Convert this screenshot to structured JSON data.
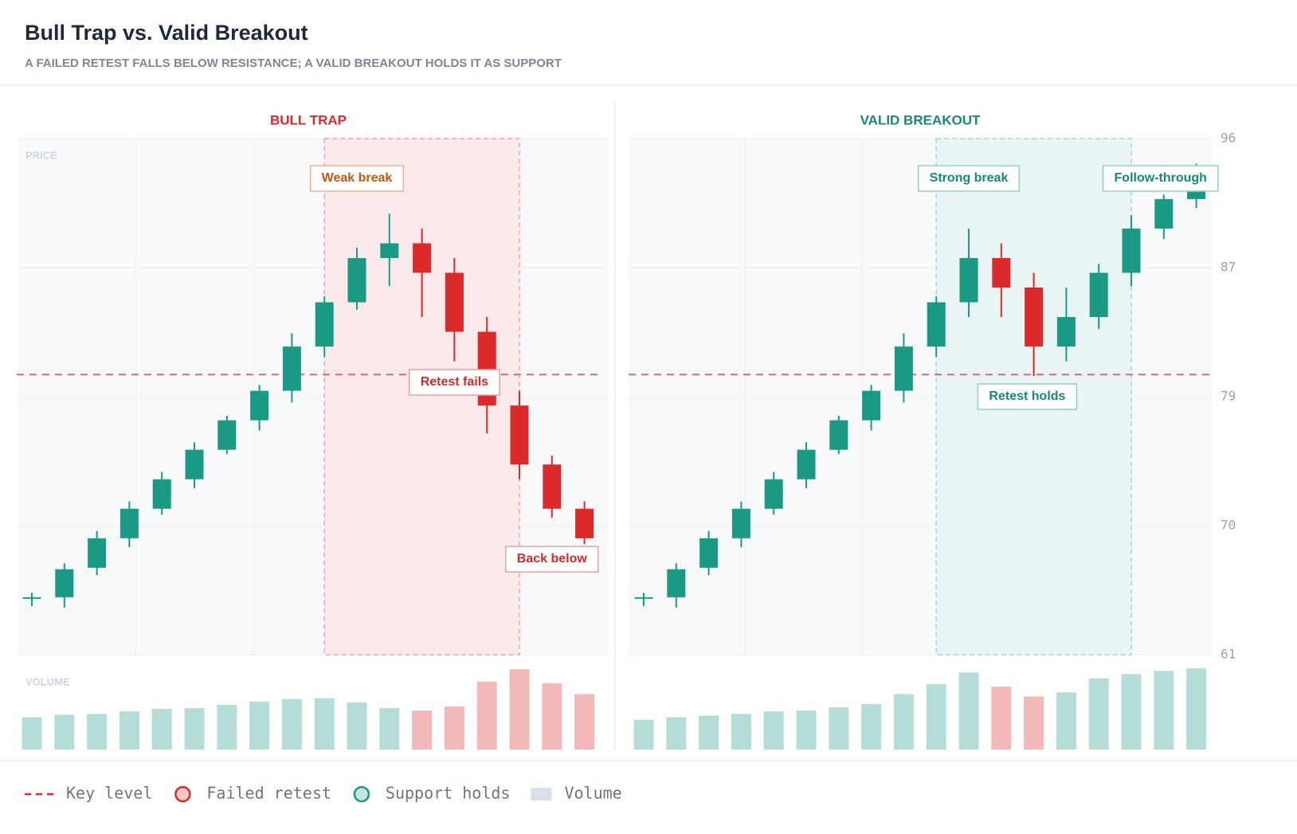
{
  "title": "Bull Trap vs. Valid Breakout",
  "subtitle": "A FAILED RETEST FALLS BELOW RESISTANCE; A VALID BREAKOUT HOLDS IT AS SUPPORT",
  "price_label": "PRICE",
  "volume_label": "VOLUME",
  "legend": [
    "Key level",
    "Failed retest",
    "Support holds",
    "Volume"
  ],
  "chart_data": [
    {
      "type": "candlestick",
      "title": "BULL TRAP",
      "title_color": "#d42b2b",
      "up_color": "#1a9a85",
      "down_color": "#dc2a2a",
      "key_level": 80,
      "ylim": [
        61,
        96
      ],
      "yticks": [
        61,
        {
          "value": 69.75,
          "label": "70"
        },
        {
          "value": 78.5,
          "label": "79"
        },
        {
          "value": 87.25,
          "label": "87"
        },
        96
      ],
      "grid": true,
      "open": [
        64.8,
        64.9,
        66.9,
        68.9,
        70.9,
        72.9,
        74.9,
        76.9,
        78.9,
        81.9,
        84.9,
        87.9,
        88.9,
        86.9,
        82.9,
        77.9,
        73.9,
        70.9
      ],
      "high": [
        65.2,
        67.2,
        69.4,
        71.4,
        73.4,
        75.4,
        77.2,
        79.3,
        82.8,
        85.3,
        88.6,
        90.9,
        89.9,
        87.9,
        83.9,
        78.9,
        74.5,
        71.4
      ],
      "low": [
        64.3,
        64.2,
        66.4,
        68.3,
        70.5,
        72.3,
        74.6,
        76.2,
        78.1,
        81.2,
        84.4,
        86.0,
        83.9,
        80.9,
        76.0,
        72.9,
        70.3,
        68.5
      ],
      "close": [
        64.9,
        66.8,
        68.9,
        70.9,
        72.9,
        74.9,
        76.9,
        78.9,
        81.9,
        84.9,
        87.9,
        88.9,
        86.9,
        82.9,
        77.9,
        73.9,
        70.9,
        68.9
      ],
      "volume": [
        39,
        42,
        43,
        46,
        49,
        50,
        54,
        58,
        61,
        62,
        57,
        50,
        47,
        52,
        82,
        97,
        80,
        67
      ],
      "annotations": [
        "Weak break",
        "Retest fails",
        "Back below"
      ]
    },
    {
      "type": "candlestick",
      "title": "VALID BREAKOUT",
      "title_color": "#168a78",
      "up_color": "#1a9a85",
      "down_color": "#dc2a2a",
      "key_level": 80,
      "ylim": [
        61,
        96
      ],
      "yticks": [
        61,
        {
          "value": 69.75,
          "label": "70"
        },
        {
          "value": 78.5,
          "label": "79"
        },
        {
          "value": 87.25,
          "label": "87"
        },
        96
      ],
      "grid": true,
      "open": [
        64.8,
        64.9,
        66.9,
        68.9,
        70.9,
        72.9,
        74.9,
        76.9,
        78.9,
        81.9,
        84.9,
        87.9,
        85.9,
        81.9,
        83.9,
        86.9,
        89.9,
        91.9
      ],
      "high": [
        65.2,
        67.2,
        69.4,
        71.4,
        73.4,
        75.4,
        77.2,
        79.3,
        82.8,
        85.3,
        89.9,
        88.9,
        86.9,
        85.9,
        87.5,
        90.8,
        92.2,
        94.3
      ],
      "low": [
        64.3,
        64.2,
        66.4,
        68.3,
        70.5,
        72.3,
        74.6,
        76.2,
        78.1,
        81.2,
        83.9,
        83.9,
        79.9,
        80.9,
        83.1,
        86.0,
        89.2,
        91.3
      ],
      "close": [
        64.9,
        66.8,
        68.9,
        70.9,
        72.9,
        74.9,
        76.9,
        78.9,
        81.9,
        84.9,
        87.9,
        85.9,
        81.9,
        83.9,
        86.9,
        89.9,
        91.9,
        92.5
      ],
      "volume": [
        36,
        39,
        41,
        43,
        46,
        47,
        51,
        55,
        67,
        79,
        93,
        76,
        64,
        69,
        86,
        91,
        95,
        98
      ],
      "annotations": [
        "Strong break",
        "Retest holds",
        "Follow-through"
      ]
    }
  ]
}
